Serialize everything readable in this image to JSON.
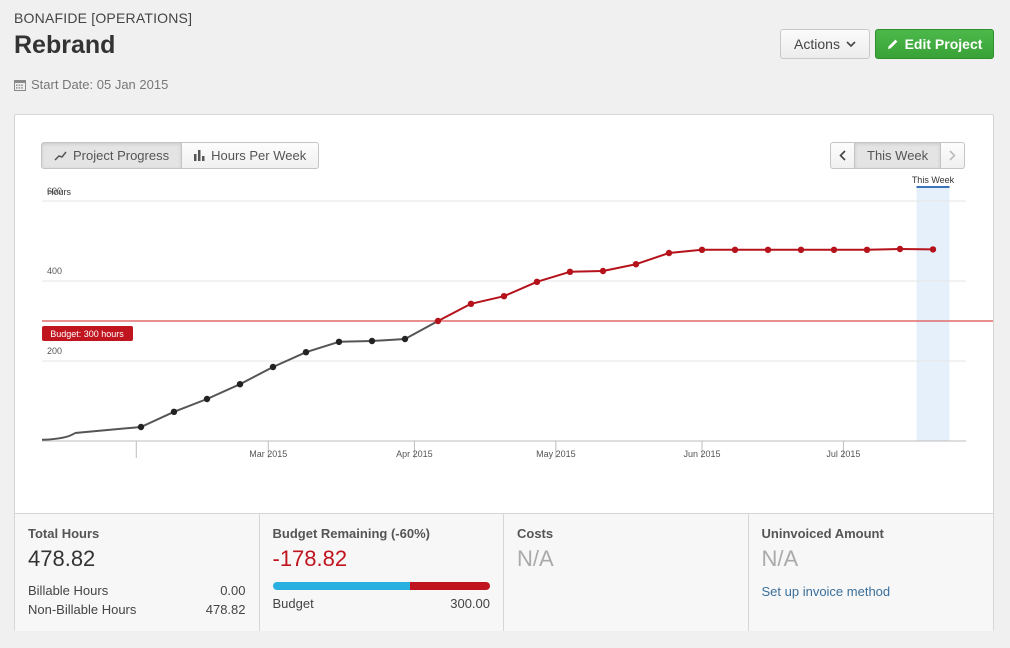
{
  "header": {
    "client": "BONAFIDE [OPERATIONS]",
    "title": "Rebrand",
    "start_date": "Start Date: 05 Jan 2015",
    "actions_label": "Actions",
    "edit_label": "Edit Project"
  },
  "toolbar": {
    "project_progress": "Project Progress",
    "hours_per_week": "Hours Per Week",
    "this_week": "This Week"
  },
  "chart_data": {
    "type": "line",
    "ylabel": "Hours",
    "ylim": [
      0,
      600
    ],
    "yticks": [
      200,
      400,
      600
    ],
    "x_tick_labels": [
      "Mar 2015",
      "Apr 2015",
      "May 2015",
      "Jun 2015",
      "Jul 2015"
    ],
    "budget_value": 300,
    "budget_label": "Budget: 300 hours",
    "current_week_label": "This Week",
    "series": [
      {
        "x": [
          "2015-01-19",
          "2015-02-02",
          "2015-02-09",
          "2015-02-16",
          "2015-02-23",
          "2015-03-02",
          "2015-03-09",
          "2015-03-16",
          "2015-03-23",
          "2015-03-30",
          "2015-04-06",
          "2015-04-13",
          "2015-04-20",
          "2015-04-27",
          "2015-05-04",
          "2015-05-11",
          "2015-05-18",
          "2015-05-25",
          "2015-06-01",
          "2015-06-08",
          "2015-06-15",
          "2015-06-22",
          "2015-06-29",
          "2015-07-06",
          "2015-07-13",
          "2015-07-20"
        ],
        "values": [
          20,
          35,
          73,
          105,
          142,
          185,
          222,
          248,
          250,
          255,
          300,
          343,
          362,
          398,
          423,
          425,
          442,
          470,
          478,
          478,
          478,
          478,
          478,
          478,
          480,
          479
        ]
      }
    ],
    "colors": {
      "under_budget": "#555555",
      "over_budget": "#b5121b",
      "budget_line": "#e06a6a",
      "grid": "#e6e6e6",
      "current_week": "#e5f0fb"
    }
  },
  "stats": {
    "total_hours": {
      "label": "Total Hours",
      "value": "478.82",
      "billable_label": "Billable Hours",
      "billable_value": "0.00",
      "non_billable_label": "Non-Billable Hours",
      "non_billable_value": "478.82"
    },
    "budget_remaining": {
      "label": "Budget Remaining (-60%)",
      "value": "-178.82",
      "budget_label": "Budget",
      "budget_value": "300.00",
      "bar_used_fraction": 0.63
    },
    "costs": {
      "label": "Costs",
      "value": "N/A"
    },
    "uninvoiced": {
      "label": "Uninvoiced Amount",
      "value": "N/A",
      "link": "Set up invoice method"
    }
  },
  "colors": {
    "green": "#3aa638",
    "red": "#c0141f",
    "blue": "#2ab0e0"
  }
}
